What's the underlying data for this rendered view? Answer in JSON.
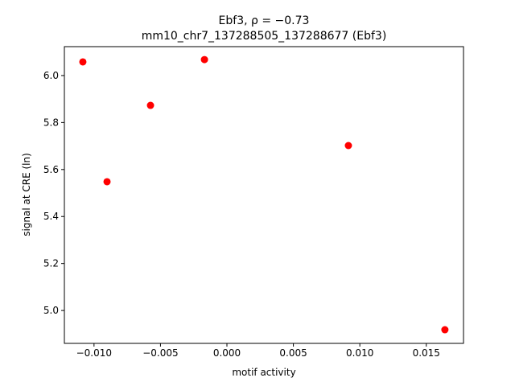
{
  "chart_data": {
    "type": "scatter",
    "title": "Ebf3, ρ = −0.73",
    "subtitle": "mm10_chr7_137288505_137288677 (Ebf3)",
    "x_label": "motif activity",
    "y_label": "signal at CRE (ln)",
    "color": "#ff0000",
    "x": [
      -0.01084,
      -0.00902,
      -0.00575,
      -0.00169,
      0.00914,
      0.0164
    ],
    "values": [
      6.058,
      5.548,
      5.873,
      6.068,
      5.702,
      4.918
    ],
    "xlim": [
      -0.01223,
      0.0178
    ],
    "ylim": [
      4.86,
      6.123
    ],
    "xticks": [
      {
        "value": -0.01,
        "label": "−0.010"
      },
      {
        "value": -0.005,
        "label": "−0.005"
      },
      {
        "value": 0,
        "label": "0.000"
      },
      {
        "value": 0.005,
        "label": "0.005"
      },
      {
        "value": 0.01,
        "label": "0.010"
      },
      {
        "value": 0.015,
        "label": "0.015"
      }
    ],
    "yticks": [
      {
        "value": 5.0,
        "label": "5.0"
      },
      {
        "value": 5.2,
        "label": "5.2"
      },
      {
        "value": 5.4,
        "label": "5.4"
      },
      {
        "value": 5.6,
        "label": "5.6"
      },
      {
        "value": 5.8,
        "label": "5.8"
      },
      {
        "value": 6.0,
        "label": "6.0"
      }
    ]
  }
}
